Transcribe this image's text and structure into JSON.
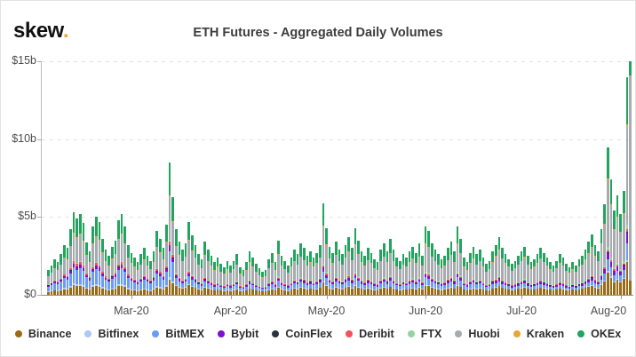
{
  "logo": {
    "text": "skew",
    "dot": "."
  },
  "title": "ETH Futures - Aggregated Daily Volumes",
  "legend": [
    {
      "name": "Binance",
      "color": "#9a6b16"
    },
    {
      "name": "Bitfinex",
      "color": "#abc8f7"
    },
    {
      "name": "BitMEX",
      "color": "#6b9bf2"
    },
    {
      "name": "Bybit",
      "color": "#7a12cf"
    },
    {
      "name": "CoinFlex",
      "color": "#2b3240"
    },
    {
      "name": "Deribit",
      "color": "#f0515c"
    },
    {
      "name": "FTX",
      "color": "#94d3a2"
    },
    {
      "name": "Huobi",
      "color": "#a7abaf"
    },
    {
      "name": "Kraken",
      "color": "#e8a733"
    },
    {
      "name": "OKEx",
      "color": "#23a45e"
    }
  ],
  "y_axis": {
    "ticks": [
      {
        "label": "$0",
        "value": 0
      },
      {
        "label": "$5b",
        "value": 5
      },
      {
        "label": "$10b",
        "value": 10
      },
      {
        "label": "$15b",
        "value": 15
      }
    ],
    "gridline_values": [
      5,
      10,
      15
    ]
  },
  "x_axis": {
    "ticks": [
      {
        "label": "Mar-20",
        "day_index": 26
      },
      {
        "label": "Apr-20",
        "day_index": 57
      },
      {
        "label": "May-20",
        "day_index": 87
      },
      {
        "label": "Jun-20",
        "day_index": 118
      },
      {
        "label": "Jul-20",
        "day_index": 148
      },
      {
        "label": "Aug-20",
        "day_index": 179
      }
    ]
  },
  "chart_data": {
    "type": "bar",
    "stacked": true,
    "title": "ETH Futures - Aggregated Daily Volumes",
    "unit": "USD billions per day",
    "start_date": "2020-02-04",
    "end_date": "2020-08-04",
    "ylim": [
      0,
      15
    ],
    "series_stack_order": [
      "Binance",
      "Bitfinex",
      "BitMEX",
      "Bybit",
      "CoinFlex",
      "Deribit",
      "FTX",
      "Huobi",
      "Kraken",
      "OKEx"
    ],
    "daily_totals_billions": [
      1.6,
      1.9,
      2.3,
      2.1,
      2.6,
      3.2,
      3.0,
      4.2,
      5.3,
      4.9,
      5.2,
      4.6,
      3.4,
      2.8,
      4.4,
      5.0,
      4.7,
      3.6,
      2.9,
      2.5,
      3.1,
      3.5,
      4.8,
      5.2,
      4.4,
      3.2,
      2.7,
      2.4,
      2.1,
      2.6,
      3.0,
      2.5,
      2.2,
      2.8,
      4.1,
      3.6,
      3.0,
      4.5,
      8.5,
      6.3,
      4.2,
      3.4,
      2.9,
      3.3,
      4.7,
      3.8,
      3.2,
      2.6,
      2.3,
      3.4,
      2.9,
      2.5,
      2.1,
      2.4,
      2.0,
      1.8,
      2.2,
      1.9,
      2.2,
      2.6,
      1.8,
      1.6,
      2.1,
      2.8,
      2.4,
      2.0,
      1.7,
      1.5,
      1.6,
      2.3,
      2.7,
      2.1,
      3.5,
      2.5,
      2.2,
      1.9,
      2.4,
      2.9,
      2.6,
      3.3,
      3.0,
      2.5,
      2.8,
      2.4,
      2.7,
      3.2,
      5.9,
      4.3,
      3.1,
      2.7,
      3.4,
      2.9,
      2.6,
      3.2,
      3.7,
      3.0,
      4.3,
      3.5,
      2.8,
      2.5,
      3.0,
      2.7,
      2.3,
      2.1,
      2.9,
      3.3,
      2.8,
      3.6,
      2.9,
      2.4,
      2.2,
      2.6,
      2.4,
      2.8,
      3.1,
      2.7,
      3.3,
      2.5,
      4.4,
      4.1,
      3.3,
      2.9,
      2.6,
      2.3,
      2.5,
      3.0,
      3.4,
      2.8,
      4.4,
      3.6,
      2.4,
      2.1,
      2.7,
      3.1,
      2.6,
      2.9,
      2.4,
      2.0,
      2.2,
      2.8,
      3.2,
      3.7,
      3.0,
      2.6,
      2.3,
      2.0,
      2.2,
      2.5,
      2.8,
      3.1,
      2.5,
      2.1,
      2.3,
      2.6,
      3.0,
      2.7,
      2.4,
      2.1,
      1.9,
      2.2,
      2.6,
      2.4,
      2.0,
      1.8,
      2.1,
      1.9,
      2.3,
      2.5,
      2.9,
      3.4,
      3.9,
      3.2,
      2.8,
      4.2,
      5.8,
      9.5,
      7.4,
      5.4,
      6.4,
      5.2,
      6.7,
      14.0,
      15.0
    ],
    "composition_eras": [
      {
        "from_day": 0,
        "shares": {
          "Binance": 0.115,
          "Bitfinex": 0.022,
          "BitMEX": 0.195,
          "Bybit": 0.042,
          "CoinFlex": 0.004,
          "Deribit": 0.028,
          "FTX": 0.012,
          "Huobi": 0.325,
          "Kraken": 0.012,
          "OKEx": 0.245
        }
      },
      {
        "from_day": 40,
        "shares": {
          "Binance": 0.135,
          "Bitfinex": 0.014,
          "BitMEX": 0.105,
          "Bybit": 0.04,
          "CoinFlex": 0.004,
          "Deribit": 0.02,
          "FTX": 0.024,
          "Huobi": 0.4,
          "Kraken": 0.01,
          "OKEx": 0.248
        }
      },
      {
        "from_day": 140,
        "shares": {
          "Binance": 0.15,
          "Bitfinex": 0.01,
          "BitMEX": 0.078,
          "Bybit": 0.046,
          "CoinFlex": 0.004,
          "Deribit": 0.014,
          "FTX": 0.022,
          "Huobi": 0.452,
          "Kraken": 0.008,
          "OKEx": 0.216
        }
      },
      {
        "from_day": 182,
        "shares": {
          "Binance": 0.06,
          "Huobi": 0.88,
          "OKEx": 0.06
        }
      }
    ]
  }
}
